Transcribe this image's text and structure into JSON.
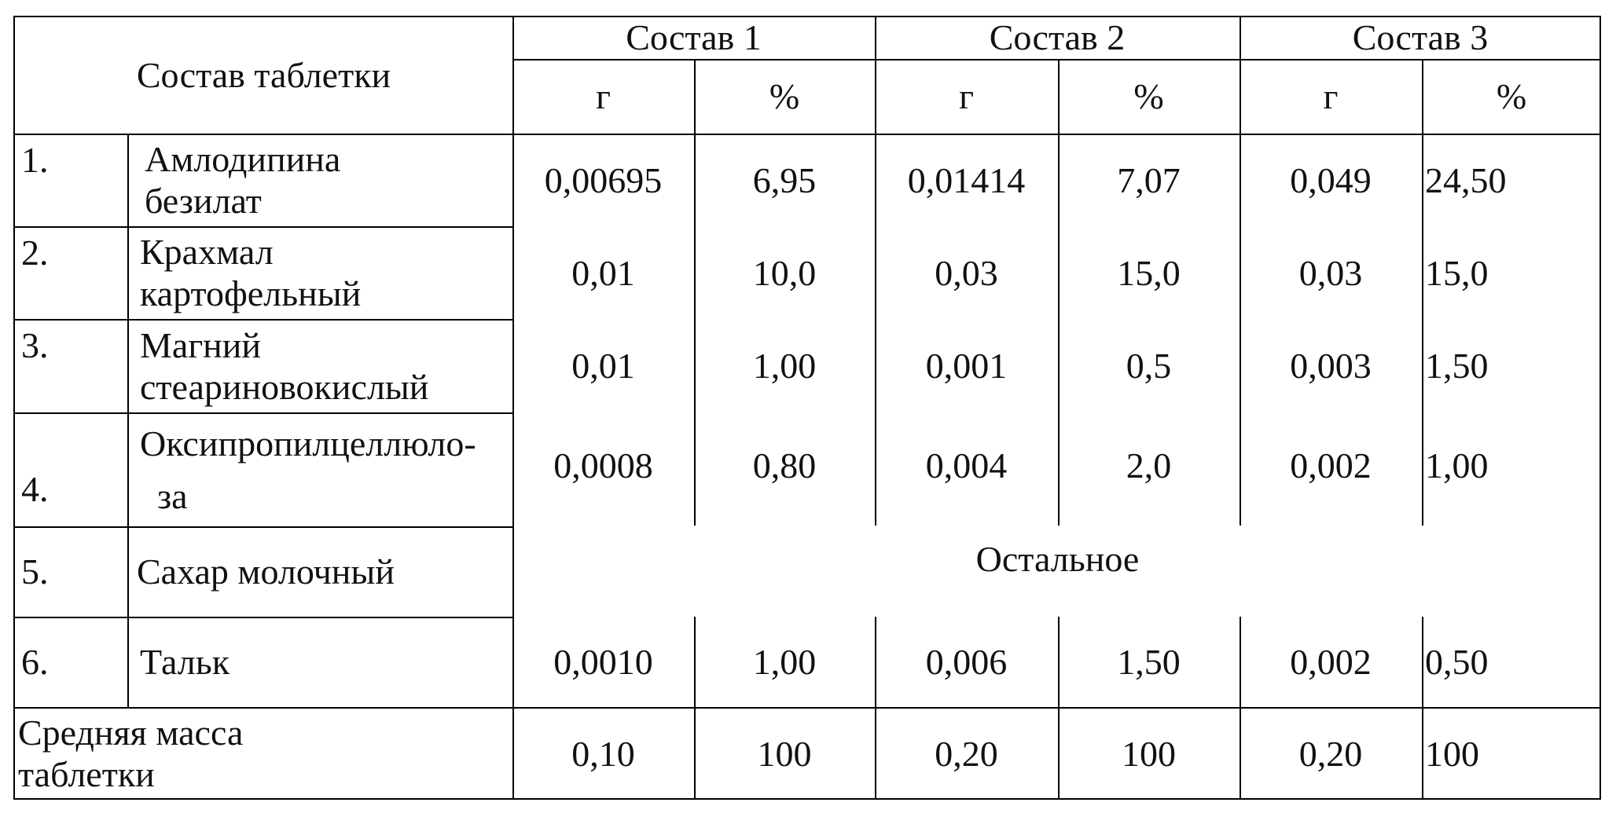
{
  "table": {
    "header": {
      "composition_label": "Состав таблетки",
      "groups": [
        "Состав 1",
        "Состав 2",
        "Состав 3"
      ],
      "unit_g": "г",
      "unit_pct": "%"
    },
    "rows": [
      {
        "num": "1.",
        "name_line1": "Амлодипина",
        "name_line2": "безилат",
        "c1_g": "0,00695",
        "c1_pct": "6,95",
        "c2_g": "0,01414",
        "c2_pct": "7,07",
        "c3_g": "0,049",
        "c3_pct": "24,50"
      },
      {
        "num": "2.",
        "name_line1": "Крахмал",
        "name_line2": "картофельный",
        "c1_g": "0,01",
        "c1_pct": "10,0",
        "c2_g": "0,03",
        "c2_pct": "15,0",
        "c3_g": "0,03",
        "c3_pct": "15,0"
      },
      {
        "num": "3.",
        "name_line1": "Магний",
        "name_line2": "стеариновокислый",
        "c1_g": "0,01",
        "c1_pct": "1,00",
        "c2_g": "0,001",
        "c2_pct": "0,5",
        "c3_g": "0,003",
        "c3_pct": "1,50"
      },
      {
        "num": "4.",
        "name_line1": "Оксипропилцеллюло-",
        "name_line2": "за",
        "c1_g": "0,0008",
        "c1_pct": "0,80",
        "c2_g": "0,004",
        "c2_pct": "2,0",
        "c3_g": "0,002",
        "c3_pct": "1,00"
      },
      {
        "num": "5.",
        "name_line1": "Сахар молочный",
        "remainder": "Остальное"
      },
      {
        "num": "6.",
        "name_line1": "Тальк",
        "c1_g": "0,0010",
        "c1_pct": "1,00",
        "c2_g": "0,006",
        "c2_pct": "1,50",
        "c3_g": "0,002",
        "c3_pct": "0,50"
      }
    ],
    "total": {
      "label_line1": "Средняя масса",
      "label_line2": "таблетки",
      "c1_g": "0,10",
      "c1_pct": "100",
      "c2_g": "0,20",
      "c2_pct": "100",
      "c3_g": "0,20",
      "c3_pct": "100"
    }
  }
}
